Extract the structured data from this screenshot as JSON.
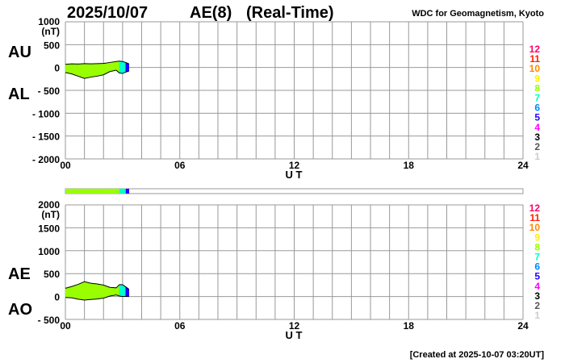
{
  "header": {
    "date": "2025/10/07",
    "index": "AE(8)",
    "mode": "(Real-Time)",
    "source": "WDC for Geomagnetism, Kyoto"
  },
  "footer": {
    "created": "[Created at 2025-10-07 03:20UT]"
  },
  "station_legend": [
    {
      "n": "12",
      "color": "#ff0066"
    },
    {
      "n": "11",
      "color": "#ff2200"
    },
    {
      "n": "10",
      "color": "#ff8800"
    },
    {
      "n": "9",
      "color": "#ffee00"
    },
    {
      "n": "8",
      "color": "#99ff00"
    },
    {
      "n": "7",
      "color": "#00ffcc"
    },
    {
      "n": "6",
      "color": "#0088ff"
    },
    {
      "n": "5",
      "color": "#2200ff"
    },
    {
      "n": "4",
      "color": "#ff00ff"
    },
    {
      "n": "3",
      "color": "#000000"
    },
    {
      "n": "2",
      "color": "#555555"
    },
    {
      "n": "1",
      "color": "#cccccc"
    }
  ],
  "chart_data": [
    {
      "type": "area",
      "series_labels": [
        "AU",
        "AL"
      ],
      "ylabel_unit": "(nT)",
      "xlabel": "U T",
      "ylim": [
        -2000,
        1000
      ],
      "yticks": [
        "1000",
        "500",
        "0",
        "- 500",
        "- 1000",
        "- 1500",
        "- 2000"
      ],
      "xlim_hours": [
        0,
        24
      ],
      "xticks": [
        "00",
        "06",
        "12",
        "18",
        "24"
      ],
      "grid": true,
      "x": [
        "00:00",
        "00:20",
        "00:40",
        "01:00",
        "01:20",
        "01:40",
        "02:00",
        "02:20",
        "02:40",
        "02:50",
        "03:00",
        "03:10",
        "03:20"
      ],
      "AU": [
        70,
        80,
        75,
        85,
        80,
        85,
        90,
        110,
        130,
        140,
        130,
        110,
        80
      ],
      "AL": [
        -110,
        -140,
        -190,
        -240,
        -210,
        -190,
        -160,
        -90,
        -60,
        -120,
        -130,
        -100,
        -80
      ],
      "stations": [
        8,
        8,
        8,
        8,
        8,
        8,
        8,
        8,
        8,
        7,
        7,
        5,
        5
      ]
    },
    {
      "type": "area",
      "series_labels": [
        "AE",
        "AO"
      ],
      "ylabel_unit": "(nT)",
      "xlabel": "U T",
      "ylim": [
        -500,
        2000
      ],
      "yticks": [
        "2000",
        "1500",
        "1000",
        "500",
        "0",
        "- 500"
      ],
      "xlim_hours": [
        0,
        24
      ],
      "xticks": [
        "00",
        "06",
        "12",
        "18",
        "24"
      ],
      "grid": true,
      "x": [
        "00:00",
        "00:20",
        "00:40",
        "01:00",
        "01:20",
        "01:40",
        "02:00",
        "02:20",
        "02:40",
        "02:50",
        "03:00",
        "03:10",
        "03:20"
      ],
      "AE": [
        180,
        220,
        265,
        325,
        290,
        275,
        250,
        200,
        190,
        260,
        260,
        210,
        160
      ],
      "AO": [
        -20,
        -30,
        -58,
        -78,
        -65,
        -53,
        -35,
        10,
        35,
        10,
        0,
        5,
        0
      ],
      "stations": [
        8,
        8,
        8,
        8,
        8,
        8,
        8,
        8,
        8,
        7,
        7,
        5,
        5
      ]
    }
  ]
}
